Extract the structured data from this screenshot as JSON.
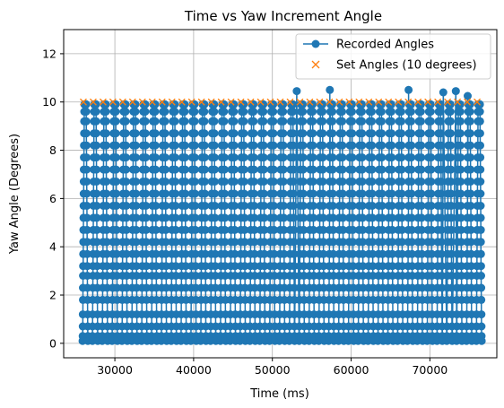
{
  "chart_data": {
    "type": "line",
    "title": "Time vs Yaw Increment Angle",
    "xlabel": "Time (ms)",
    "ylabel": "Yaw Angle (Degrees)",
    "xlim": [
      23500,
      78500
    ],
    "ylim": [
      -0.6,
      13.0
    ],
    "x_ticks": [
      30000,
      40000,
      50000,
      60000,
      70000
    ],
    "y_ticks": [
      0,
      2,
      4,
      6,
      8,
      10,
      12
    ],
    "grid": true,
    "legend_position": "top-right",
    "colors": {
      "recorded": "#1f77b4",
      "set": "#ff7f0e",
      "grid": "#b0b0b0"
    },
    "sweep": {
      "start": 25900,
      "period": 1250,
      "count": 41,
      "y_levels": [
        0.1,
        0.3,
        0.7,
        1.2,
        1.8,
        2.3,
        2.8,
        3.2,
        3.7,
        4.2,
        4.7,
        5.2,
        5.7,
        6.2,
        6.7,
        7.2,
        7.7,
        8.2,
        8.7,
        9.2,
        9.6,
        9.9
      ]
    },
    "recorded_peaks": [
      {
        "x": 53100,
        "y": 10.45
      },
      {
        "x": 57300,
        "y": 10.5
      },
      {
        "x": 67300,
        "y": 10.5
      },
      {
        "x": 71700,
        "y": 10.4
      },
      {
        "x": 73300,
        "y": 10.45
      },
      {
        "x": 74800,
        "y": 10.25
      }
    ],
    "series": [
      {
        "name": "Recorded Angles",
        "marker": "circle",
        "line": true
      },
      {
        "name": "Set Angles (10 degrees)",
        "marker": "x",
        "line": false,
        "y": 10,
        "x_start": 26000,
        "x_end": 76000,
        "x_step": 1250
      }
    ]
  }
}
